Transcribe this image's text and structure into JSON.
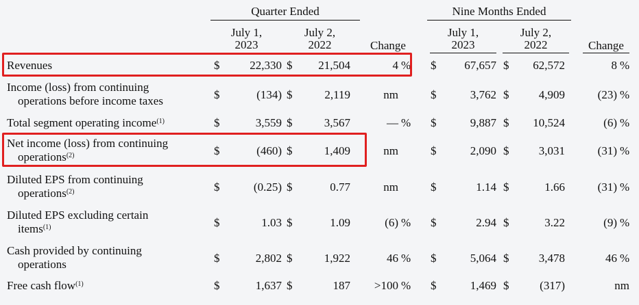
{
  "header": {
    "quarter_group": "Quarter Ended",
    "nine_group": "Nine Months Ended",
    "q_cur": [
      "July 1,",
      "2023"
    ],
    "q_prev": [
      "July 2,",
      "2022"
    ],
    "n_cur": [
      "July 1,",
      "2023"
    ],
    "n_prev": [
      "July 2,",
      "2022"
    ],
    "change": "Change"
  },
  "rows": [
    {
      "label": [
        "Revenues"
      ],
      "sup": "",
      "q23": "22,330",
      "q22": "21,504",
      "qchg": "4",
      "qpct": "%",
      "n23": "67,657",
      "n22": "62,572",
      "nchg": "8",
      "npct": "%"
    },
    {
      "label": [
        "Income (loss) from continuing",
        "operations before income taxes"
      ],
      "sup": "",
      "q23": "(134)",
      "q22": "2,119",
      "qchg": "nm",
      "qpct": "",
      "n23": "3,762",
      "n22": "4,909",
      "nchg": "(23)",
      "npct": "%"
    },
    {
      "label": [
        "Total segment operating income"
      ],
      "sup": "(1)",
      "q23": "3,559",
      "q22": "3,567",
      "qchg": "—",
      "qpct": "%",
      "n23": "9,887",
      "n22": "10,524",
      "nchg": "(6)",
      "npct": "%"
    },
    {
      "label": [
        "Net income (loss) from continuing",
        "operations"
      ],
      "sup": "(2)",
      "q23": "(460)",
      "q22": "1,409",
      "qchg": "nm",
      "qpct": "",
      "n23": "2,090",
      "n22": "3,031",
      "nchg": "(31)",
      "npct": "%"
    },
    {
      "label": [
        "Diluted EPS from continuing",
        "operations"
      ],
      "sup": "(2)",
      "q23": "(0.25)",
      "q22": "0.77",
      "qchg": "nm",
      "qpct": "",
      "n23": "1.14",
      "n22": "1.66",
      "nchg": "(31)",
      "npct": "%"
    },
    {
      "label": [
        "Diluted EPS excluding certain",
        "items"
      ],
      "sup": "(1)",
      "q23": "1.03",
      "q22": "1.09",
      "qchg": "(6)",
      "qpct": "%",
      "n23": "2.94",
      "n22": "3.22",
      "nchg": "(9)",
      "npct": "%"
    },
    {
      "label": [
        "Cash provided by continuing",
        "operations"
      ],
      "sup": "",
      "q23": "2,802",
      "q22": "1,922",
      "qchg": "46",
      "qpct": "%",
      "n23": "5,064",
      "n22": "3,478",
      "nchg": "46",
      "npct": "%"
    },
    {
      "label": [
        "Free cash flow"
      ],
      "sup": "(1)",
      "q23": "1,637",
      "q22": "187",
      "qchg": ">100",
      "qpct": "%",
      "n23": "1,469",
      "n22": "(317)",
      "nchg": "nm",
      "npct": ""
    }
  ],
  "currency_symbol": "$",
  "highlight_color": "#e02020"
}
